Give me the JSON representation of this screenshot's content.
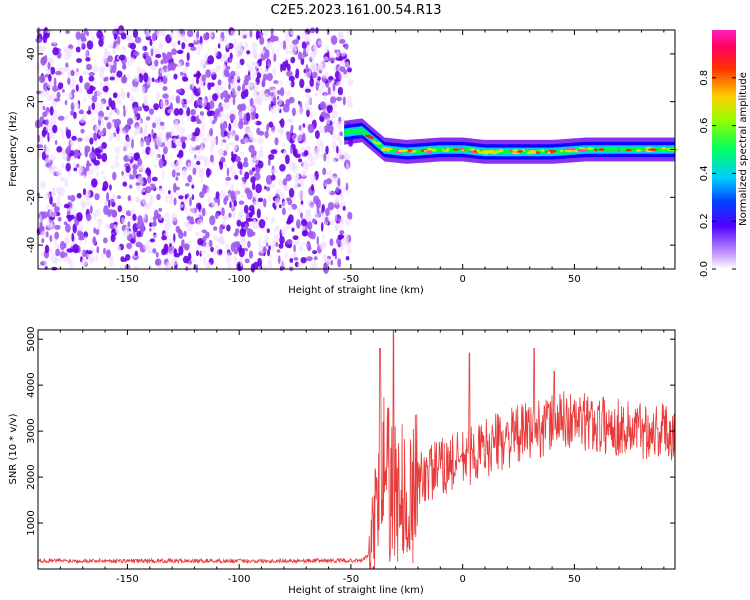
{
  "figure_title": "C2E5.2023.161.00.54.R13",
  "colors": {
    "snr_line": "#e83a3a",
    "axis": "#000000",
    "spectrogram_palette": [
      "#f0dcff",
      "#a05af0",
      "#6a00e8",
      "#0000ff",
      "#00d8ff",
      "#00ff30",
      "#b8ff00",
      "#ffd000",
      "#ff7a00",
      "#ff2020",
      "#ff40c0"
    ]
  },
  "chart_data": [
    {
      "type": "heatmap",
      "xlabel": "Height of straight line (km)",
      "ylabel": "Frequency (Hz)",
      "xlim": [
        -190,
        95
      ],
      "ylim": [
        -50,
        50
      ],
      "x_ticks": [
        -150,
        -100,
        -50,
        0,
        50
      ],
      "y_ticks": [
        -40,
        -20,
        0,
        20,
        40
      ],
      "grid": false,
      "colorbar": {
        "label": "Normalized spectral amplitude",
        "range": [
          0.0,
          1.0
        ],
        "ticks": [
          0.0,
          0.2,
          0.4,
          0.6,
          0.8
        ]
      },
      "noise_region_x": [
        -190,
        -50
      ],
      "signal_track": [
        {
          "x": -53,
          "f": 7
        },
        {
          "x": -45,
          "f": 8
        },
        {
          "x": -40,
          "f": 4
        },
        {
          "x": -35,
          "f": 0
        },
        {
          "x": -25,
          "f": -1
        },
        {
          "x": -10,
          "f": 0
        },
        {
          "x": 0,
          "f": 0
        },
        {
          "x": 10,
          "f": -1
        },
        {
          "x": 25,
          "f": -1
        },
        {
          "x": 40,
          "f": -1
        },
        {
          "x": 55,
          "f": 0
        },
        {
          "x": 70,
          "f": 0
        },
        {
          "x": 95,
          "f": 0
        }
      ]
    },
    {
      "type": "line",
      "xlabel": "Height of straight line (km)",
      "ylabel": "SNR (10 * v/v)",
      "xlim": [
        -190,
        95
      ],
      "ylim": [
        0,
        5200
      ],
      "x_ticks": [
        -150,
        -100,
        -50,
        0,
        50
      ],
      "y_ticks": [
        1000,
        2000,
        3000,
        4000,
        5000
      ],
      "grid": false,
      "series": [
        {
          "trend": [
            {
              "x": -190,
              "y": 180
            },
            {
              "x": -100,
              "y": 175
            },
            {
              "x": -45,
              "y": 185
            },
            {
              "x": -40,
              "y": 400
            },
            {
              "x": -36,
              "y": 2500
            },
            {
              "x": -32,
              "y": 2000
            },
            {
              "x": -25,
              "y": 1800
            },
            {
              "x": -15,
              "y": 2100
            },
            {
              "x": -5,
              "y": 2300
            },
            {
              "x": 5,
              "y": 2500
            },
            {
              "x": 15,
              "y": 2750
            },
            {
              "x": 30,
              "y": 3000
            },
            {
              "x": 45,
              "y": 3250
            },
            {
              "x": 60,
              "y": 3150
            },
            {
              "x": 75,
              "y": 3050
            },
            {
              "x": 95,
              "y": 3000
            }
          ],
          "peaks": [
            {
              "x": -37,
              "y": 4800
            },
            {
              "x": -31,
              "y": 5200
            },
            {
              "x": 3,
              "y": 4700
            },
            {
              "x": 32,
              "y": 4800
            },
            {
              "x": 41,
              "y": 4300
            }
          ]
        }
      ]
    }
  ]
}
